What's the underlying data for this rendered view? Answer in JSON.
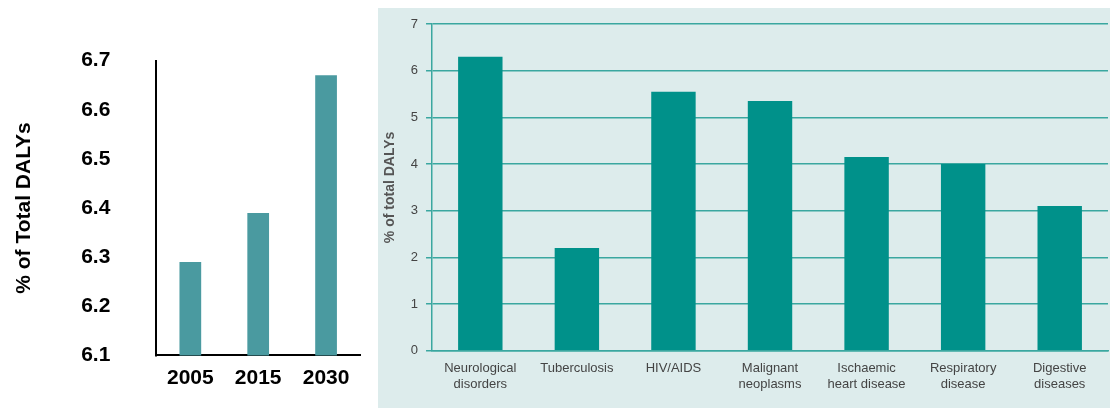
{
  "chart_data": [
    {
      "type": "bar",
      "categories": [
        "2005",
        "2015",
        "2030"
      ],
      "values": [
        6.29,
        6.39,
        6.67
      ],
      "color": "#4a9aa0",
      "ylabel": "% of Total DALYs",
      "ylim": [
        6.1,
        6.7
      ],
      "yticks": [
        6.1,
        6.2,
        6.3,
        6.4,
        6.5,
        6.6,
        6.7
      ],
      "grid": false
    },
    {
      "type": "bar",
      "categories": [
        "Neurological disorders",
        "Tuberculosis",
        "HIV/AIDS",
        "Malignant neoplasms",
        "Ischaemic heart disease",
        "Respiratory disease",
        "Digestive diseases"
      ],
      "values": [
        6.3,
        2.2,
        5.55,
        5.35,
        4.15,
        4.0,
        3.1
      ],
      "color": "#00918a",
      "ylabel": "% of total DALYs",
      "ylim": [
        0,
        7
      ],
      "yticks": [
        0,
        1,
        2,
        3,
        4,
        5,
        6,
        7
      ],
      "grid": "y"
    }
  ]
}
